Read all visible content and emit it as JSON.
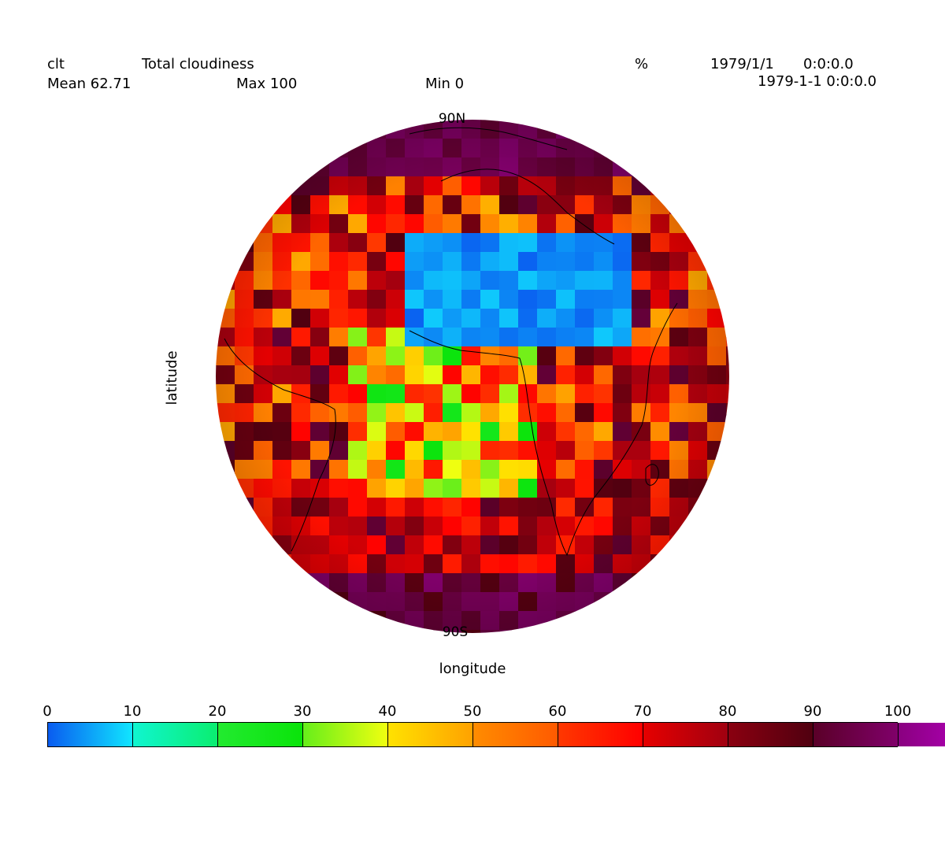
{
  "header": {
    "var_name": "clt",
    "long_name": "Total cloudiness",
    "units": "%",
    "date": "1979/1/1",
    "time": "0:0:0.0",
    "datetime": "1979-1-1 0:0:0.0",
    "mean_label": "Mean 62.71",
    "max_label": "Max 100",
    "min_label": "Min 0"
  },
  "globe": {
    "north_label": "90N",
    "south_label": "90S",
    "xlabel": "longitude",
    "ylabel": "latitude",
    "projection": "orthographic",
    "variable": "cloud-fraction",
    "statistics": {
      "mean": 62.71,
      "max": 100,
      "min": 0
    }
  },
  "colorbar": {
    "ticks": [
      "0",
      "10",
      "20",
      "30",
      "40",
      "50",
      "60",
      "70",
      "80",
      "90",
      "100"
    ],
    "range": [
      0,
      100
    ],
    "segments": [
      [
        "#0a5cf0",
        "#10e6ff"
      ],
      [
        "#10f5d0",
        "#0aee70"
      ],
      [
        "#22ea30",
        "#0ae40a"
      ],
      [
        "#66ee1a",
        "#f0ff10"
      ],
      [
        "#ffe200",
        "#ffa200"
      ],
      [
        "#ff8c00",
        "#ff5a00"
      ],
      [
        "#ff3800",
        "#ff0000"
      ],
      [
        "#e60000",
        "#a00010"
      ],
      [
        "#8a0010",
        "#500010"
      ],
      [
        "#5a0028",
        "#80006a"
      ],
      [
        "#8a0080",
        "#b600c0"
      ]
    ]
  }
}
